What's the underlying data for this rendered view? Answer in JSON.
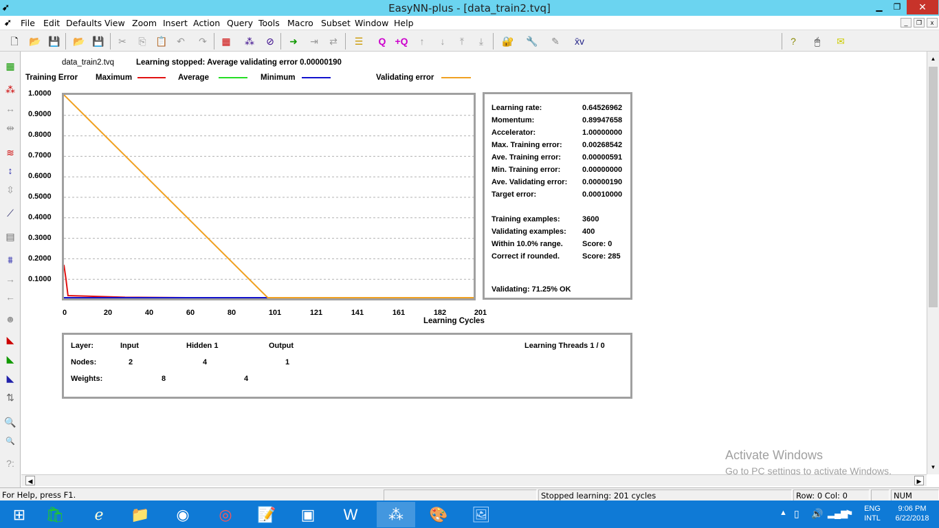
{
  "window": {
    "title": "EasyNN-plus - [data_train2.tvq]",
    "minimize": "▁",
    "restore": "❐",
    "close": "✕"
  },
  "menu": [
    "File",
    "Edit",
    "Defaults",
    "View",
    "Zoom",
    "Insert",
    "Action",
    "Query",
    "Tools",
    "Macro",
    "Subset",
    "Window",
    "Help"
  ],
  "doc": {
    "filename": "data_train2.tvq",
    "status_message": "Learning stopped: Average validating error 0.00000190",
    "legend": {
      "title": "Training Error",
      "maximum": "Maximum",
      "average": "Average",
      "minimum": "Minimum",
      "validating": "Validating error"
    }
  },
  "chart_data": {
    "type": "line",
    "title": "",
    "xlabel": "Learning Cycles",
    "ylabel": "",
    "xlim": [
      0,
      201
    ],
    "ylim": [
      0,
      1.0
    ],
    "grid": true,
    "y_ticks": [
      "1.0000",
      "0.9000",
      "0.8000",
      "0.7000",
      "0.6000",
      "0.5000",
      "0.4000",
      "0.3000",
      "0.2000",
      "0.1000"
    ],
    "x_ticks": [
      "0",
      "20",
      "40",
      "60",
      "80",
      "101",
      "121",
      "141",
      "161",
      "182",
      "201"
    ],
    "series": [
      {
        "name": "Maximum",
        "color": "#e01010",
        "x": [
          0,
          1,
          2,
          10,
          30,
          60,
          80,
          99,
          101,
          201
        ],
        "y": [
          0.17,
          0.1,
          0.02,
          0.018,
          0.012,
          0.008,
          0.005,
          0.003,
          0.0027,
          0.0027
        ]
      },
      {
        "name": "Average",
        "color": "#22dd22",
        "x": [
          0,
          201
        ],
        "y": [
          0.0,
          0.0
        ]
      },
      {
        "name": "Minimum",
        "color": "#1010cc",
        "x": [
          0,
          2,
          50,
          80,
          101,
          201
        ],
        "y": [
          0.003,
          0.002,
          0.003,
          0.0015,
          0.0,
          0.0
        ]
      },
      {
        "name": "Validating error",
        "color": "#f0a020",
        "x": [
          0,
          100,
          101,
          201
        ],
        "y": [
          1.0,
          0.0,
          0.0,
          0.0
        ]
      }
    ]
  },
  "stats": {
    "rows": [
      {
        "label": "Learning rate:",
        "value": "0.64526962"
      },
      {
        "label": "Momentum:",
        "value": "0.89947658"
      },
      {
        "label": "Accelerator:",
        "value": "1.00000000"
      },
      {
        "label": "Max. Training error:",
        "value": "0.00268542"
      },
      {
        "label": "Ave. Training error:",
        "value": "0.00000591"
      },
      {
        "label": "Min. Training error:",
        "value": "0.00000000"
      },
      {
        "label": "Ave. Validating error:",
        "value": "0.00000190"
      },
      {
        "label": "Target error:",
        "value": "0.00010000"
      }
    ],
    "examples": [
      {
        "label": "Training examples:",
        "value": "3600"
      },
      {
        "label": "Validating examples:",
        "value": "400"
      },
      {
        "label": "Within 10.0% range.",
        "value": "Score: 0"
      },
      {
        "label": "Correct if rounded.",
        "value": "Score: 285"
      }
    ],
    "validating": "Validating: 71.25% OK"
  },
  "network": {
    "layer_label": "Layer:",
    "input_label": "Input",
    "hidden_label": "Hidden 1",
    "output_label": "Output",
    "threads": "Learning Threads 1 / 0",
    "nodes_label": "Nodes:",
    "nodes": [
      "2",
      "4",
      "1"
    ],
    "weights_label": "Weights:",
    "weights": [
      "8",
      "4"
    ]
  },
  "watermark": {
    "line1": "Activate Windows",
    "line2": "Go to PC settings to activate Windows."
  },
  "statusbar": {
    "help": "For Help, press F1.",
    "learning": "Stopped learning:  201 cycles",
    "position": "Row: 0  Col: 0",
    "num": "NUM"
  },
  "taskbar": {
    "lang1": "ENG",
    "lang2": "INTL",
    "time": "9:06 PM",
    "date": "6/22/2018"
  }
}
